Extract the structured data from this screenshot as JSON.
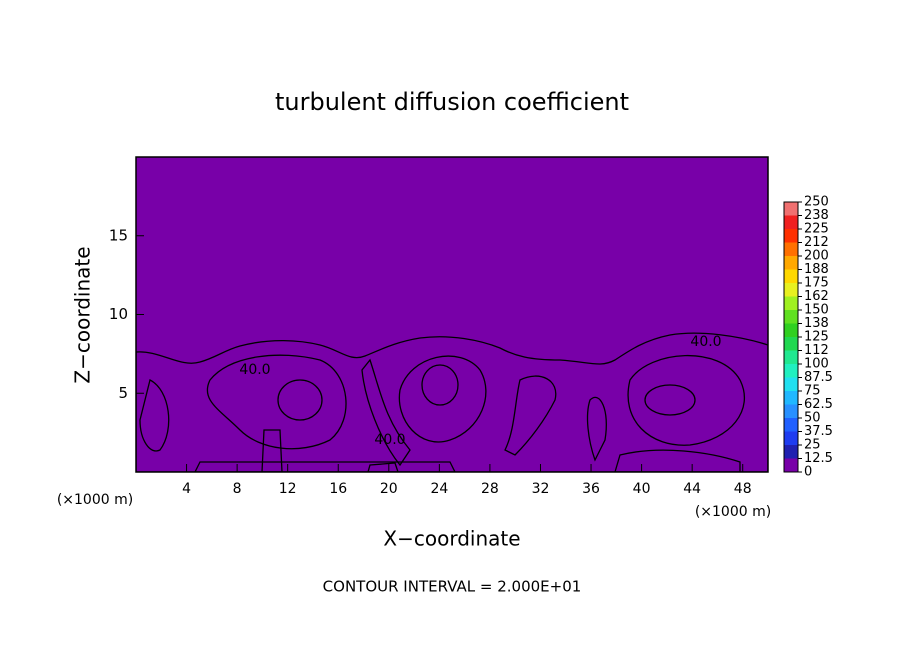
{
  "chart_data": {
    "type": "contour",
    "title": "turbulent diffusion coefficient",
    "x_label": "X−coordinate",
    "y_label": "Z−coordinate",
    "x_unit_label": "(×1000 m)",
    "footer": "CONTOUR INTERVAL = 2.000E+01",
    "contour_label": "40.0",
    "xlim": [
      0,
      50
    ],
    "xticks": [
      4,
      8,
      12,
      16,
      20,
      24,
      28,
      32,
      36,
      40,
      44,
      48
    ],
    "ylim": [
      0,
      20
    ],
    "yticks": [
      5,
      10,
      15
    ],
    "colorbar": {
      "ticks": [
        0,
        12.5,
        25,
        37.5,
        50,
        62.5,
        75,
        87.5,
        100,
        {
          "value": 112.5,
          "label": "112"
        },
        125,
        {
          "value": 137.5,
          "label": "138"
        },
        150,
        {
          "value": 162.5,
          "label": "162"
        },
        175,
        {
          "value": 187.5,
          "label": "188"
        },
        200,
        {
          "value": 212.5,
          "label": "212"
        },
        225,
        {
          "value": 237.5,
          "label": "238"
        },
        250
      ],
      "colors": [
        "#7800a8",
        "#2020b0",
        "#1e3cf0",
        "#2060ff",
        "#2890ff",
        "#20b8ff",
        "#20e0f0",
        "#20f0c0",
        "#20e890",
        "#20d850",
        "#30d020",
        "#60e020",
        "#a0f020",
        "#e8f020",
        "#ffd800",
        "#ffa800",
        "#ff7000",
        "#ff3000",
        "#f02020",
        "#f07070"
      ]
    }
  }
}
